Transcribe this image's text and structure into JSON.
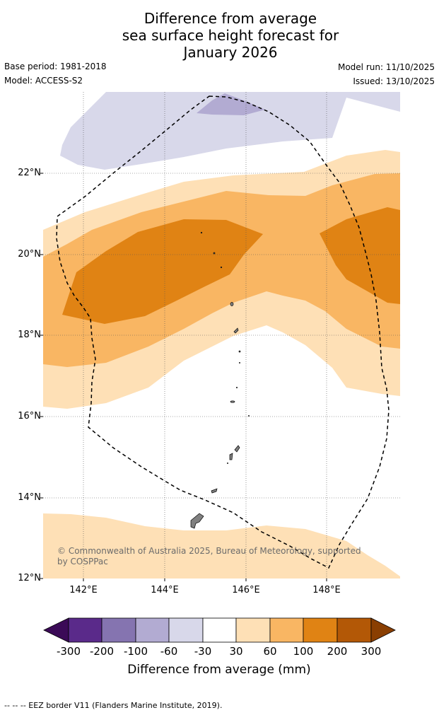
{
  "title": {
    "line1": "Difference from average",
    "line2": "sea surface height forecast for",
    "line3": "January 2026"
  },
  "meta": {
    "base_period": "Base period: 1981-2018",
    "model": "Model: ACCESS-S2",
    "model_run": "Model run: 11/10/2025",
    "issued": "Issued: 13/10/2025"
  },
  "axes": {
    "latitudes": [
      "22°N",
      "20°N",
      "18°N",
      "16°N",
      "14°N",
      "12°N"
    ],
    "longitudes": [
      "142°E",
      "144°E",
      "146°E",
      "148°E"
    ]
  },
  "copyright": "© Commonwealth of Australia 2025, Bureau of Meteorology, supported by COSPPac",
  "colorbar": {
    "labels": [
      "-300",
      "-200",
      "-100",
      "-60",
      "-30",
      "30",
      "60",
      "100",
      "200",
      "300"
    ],
    "title": "Difference from average (mm)",
    "colors": [
      "#3b0a57",
      "#5a2a8a",
      "#8574b0",
      "#b2abd2",
      "#d8d8ea",
      "#ffffff",
      "#fee0b6",
      "#f9b663",
      "#e08314",
      "#b35806",
      "#8a3f02"
    ]
  },
  "footnote": "--  --  -- EEZ border V11 (Flanders Marine Institute, 2019)."
}
